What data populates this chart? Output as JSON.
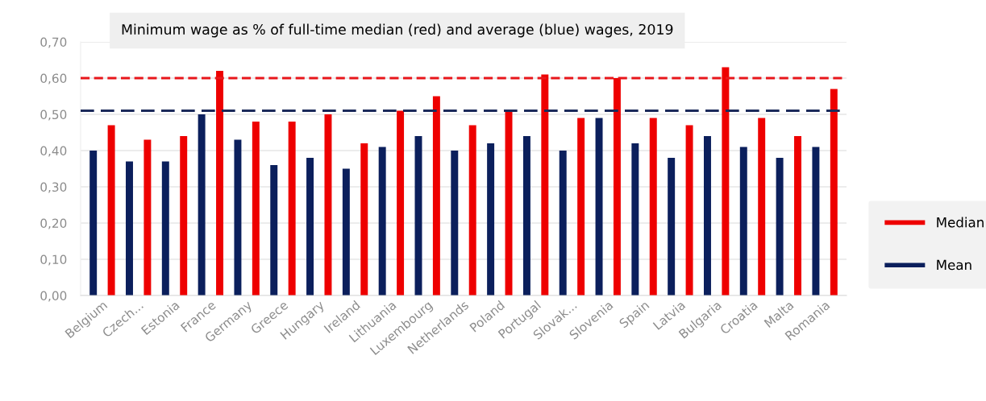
{
  "chart_data": {
    "type": "bar",
    "title": "Minimum wage as % of full-time median (red) and average (blue) wages, 2019",
    "categories": [
      "Belgium",
      "Czech...",
      "Estonia",
      "France",
      "Germany",
      "Greece",
      "Hungary",
      "Ireland",
      "Lithuania",
      "Luxembourg",
      "Netherlands",
      "Poland",
      "Portugal",
      "Slovak...",
      "Slovenia",
      "Spain",
      "Latvia",
      "Bulgaria",
      "Croatia",
      "Malta",
      "Romania"
    ],
    "series": [
      {
        "name": "Mean",
        "color": "#0b1f5c",
        "values": [
          0.4,
          0.37,
          0.37,
          0.5,
          0.43,
          0.36,
          0.38,
          0.35,
          0.41,
          0.44,
          0.4,
          0.42,
          0.44,
          0.4,
          0.49,
          0.42,
          0.38,
          0.44,
          0.41,
          0.38,
          0.41
        ]
      },
      {
        "name": "Median",
        "color": "#ee0000",
        "values": [
          0.47,
          0.43,
          0.44,
          0.62,
          0.48,
          0.48,
          0.5,
          0.42,
          0.51,
          0.55,
          0.47,
          0.51,
          0.61,
          0.49,
          0.6,
          0.49,
          0.47,
          0.63,
          0.49,
          0.44,
          0.57
        ]
      }
    ],
    "ylim": [
      0,
      0.7
    ],
    "yticks": [
      {
        "value": 0,
        "label": "0,00"
      },
      {
        "value": 0.1,
        "label": "0,10"
      },
      {
        "value": 0.2,
        "label": "0,20"
      },
      {
        "value": 0.3,
        "label": "0,30"
      },
      {
        "value": 0.4,
        "label": "0,40"
      },
      {
        "value": 0.5,
        "label": "0,50"
      },
      {
        "value": 0.6,
        "label": "0,60"
      },
      {
        "value": 0.7,
        "label": "0,70"
      }
    ],
    "ref_lines": [
      {
        "axis": "y",
        "value": 0.6,
        "color": "#e8161b",
        "line_style": "dashed"
      },
      {
        "axis": "y",
        "value": 0.51,
        "color": "#1b2a5a",
        "line_style": "dashed"
      }
    ],
    "grid": "y",
    "legend": "right"
  }
}
